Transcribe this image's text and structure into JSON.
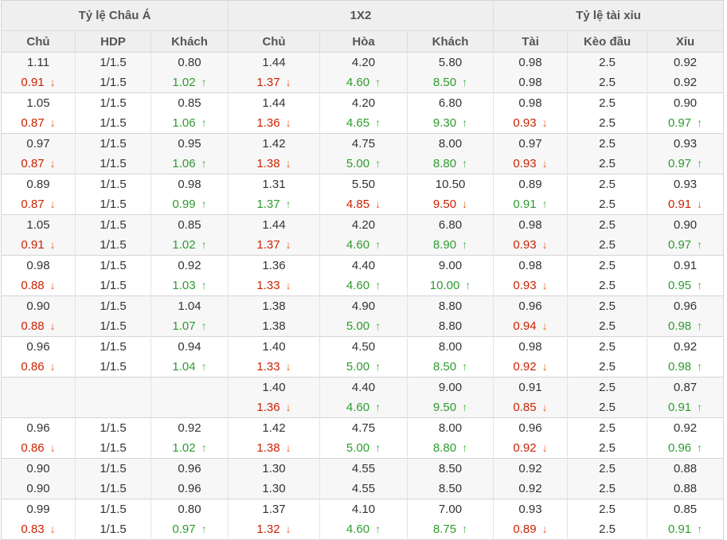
{
  "table": {
    "groups": [
      {
        "label": "Tỷ lệ Châu Á",
        "columns": [
          "Chủ",
          "HDP",
          "Khách"
        ]
      },
      {
        "label": "1X2",
        "columns": [
          "Chủ",
          "Hòa",
          "Khách"
        ]
      },
      {
        "label": "Tỷ lệ tài xỉu",
        "columns": [
          "Tài",
          "Kèo đầu",
          "Xỉu"
        ]
      }
    ],
    "icons": {
      "up": "↑",
      "down": "↓"
    },
    "colors": {
      "header_bg": "#efefef",
      "alt_pair_bg": "#f7f7f7",
      "text": "#333333",
      "value_up": "#2e9b2e",
      "value_down": "#cc2200",
      "arrow_up": "#4db34d",
      "arrow_down": "#ee5a1e"
    },
    "row_pairs": [
      {
        "open": [
          {
            "v": "1.11"
          },
          {
            "v": "1/1.5"
          },
          {
            "v": "0.80"
          },
          {
            "v": "1.44"
          },
          {
            "v": "4.20"
          },
          {
            "v": "5.80"
          },
          {
            "v": "0.98"
          },
          {
            "v": "2.5"
          },
          {
            "v": "0.92"
          }
        ],
        "live": [
          {
            "v": "0.91",
            "t": "down"
          },
          {
            "v": "1/1.5"
          },
          {
            "v": "1.02",
            "t": "up"
          },
          {
            "v": "1.37",
            "t": "down"
          },
          {
            "v": "4.60",
            "t": "up"
          },
          {
            "v": "8.50",
            "t": "up"
          },
          {
            "v": "0.98"
          },
          {
            "v": "2.5"
          },
          {
            "v": "0.92"
          }
        ]
      },
      {
        "open": [
          {
            "v": "1.05"
          },
          {
            "v": "1/1.5"
          },
          {
            "v": "0.85"
          },
          {
            "v": "1.44"
          },
          {
            "v": "4.20"
          },
          {
            "v": "6.80"
          },
          {
            "v": "0.98"
          },
          {
            "v": "2.5"
          },
          {
            "v": "0.90"
          }
        ],
        "live": [
          {
            "v": "0.87",
            "t": "down"
          },
          {
            "v": "1/1.5"
          },
          {
            "v": "1.06",
            "t": "up"
          },
          {
            "v": "1.36",
            "t": "down"
          },
          {
            "v": "4.65",
            "t": "up"
          },
          {
            "v": "9.30",
            "t": "up"
          },
          {
            "v": "0.93",
            "t": "down"
          },
          {
            "v": "2.5"
          },
          {
            "v": "0.97",
            "t": "up"
          }
        ]
      },
      {
        "open": [
          {
            "v": "0.97"
          },
          {
            "v": "1/1.5"
          },
          {
            "v": "0.95"
          },
          {
            "v": "1.42"
          },
          {
            "v": "4.75"
          },
          {
            "v": "8.00"
          },
          {
            "v": "0.97"
          },
          {
            "v": "2.5"
          },
          {
            "v": "0.93"
          }
        ],
        "live": [
          {
            "v": "0.87",
            "t": "down"
          },
          {
            "v": "1/1.5"
          },
          {
            "v": "1.06",
            "t": "up"
          },
          {
            "v": "1.38",
            "t": "down"
          },
          {
            "v": "5.00",
            "t": "up"
          },
          {
            "v": "8.80",
            "t": "up"
          },
          {
            "v": "0.93",
            "t": "down"
          },
          {
            "v": "2.5"
          },
          {
            "v": "0.97",
            "t": "up"
          }
        ]
      },
      {
        "open": [
          {
            "v": "0.89"
          },
          {
            "v": "1/1.5"
          },
          {
            "v": "0.98"
          },
          {
            "v": "1.31"
          },
          {
            "v": "5.50"
          },
          {
            "v": "10.50"
          },
          {
            "v": "0.89"
          },
          {
            "v": "2.5"
          },
          {
            "v": "0.93"
          }
        ],
        "live": [
          {
            "v": "0.87",
            "t": "down"
          },
          {
            "v": "1/1.5"
          },
          {
            "v": "0.99",
            "t": "up"
          },
          {
            "v": "1.37",
            "t": "up"
          },
          {
            "v": "4.85",
            "t": "down"
          },
          {
            "v": "9.50",
            "t": "down"
          },
          {
            "v": "0.91",
            "t": "up"
          },
          {
            "v": "2.5"
          },
          {
            "v": "0.91",
            "t": "down"
          }
        ]
      },
      {
        "open": [
          {
            "v": "1.05"
          },
          {
            "v": "1/1.5"
          },
          {
            "v": "0.85"
          },
          {
            "v": "1.44"
          },
          {
            "v": "4.20"
          },
          {
            "v": "6.80"
          },
          {
            "v": "0.98"
          },
          {
            "v": "2.5"
          },
          {
            "v": "0.90"
          }
        ],
        "live": [
          {
            "v": "0.91",
            "t": "down"
          },
          {
            "v": "1/1.5"
          },
          {
            "v": "1.02",
            "t": "up"
          },
          {
            "v": "1.37",
            "t": "down"
          },
          {
            "v": "4.60",
            "t": "up"
          },
          {
            "v": "8.90",
            "t": "up"
          },
          {
            "v": "0.93",
            "t": "down"
          },
          {
            "v": "2.5"
          },
          {
            "v": "0.97",
            "t": "up"
          }
        ]
      },
      {
        "open": [
          {
            "v": "0.98"
          },
          {
            "v": "1/1.5"
          },
          {
            "v": "0.92"
          },
          {
            "v": "1.36"
          },
          {
            "v": "4.40"
          },
          {
            "v": "9.00"
          },
          {
            "v": "0.98"
          },
          {
            "v": "2.5"
          },
          {
            "v": "0.91"
          }
        ],
        "live": [
          {
            "v": "0.88",
            "t": "down"
          },
          {
            "v": "1/1.5"
          },
          {
            "v": "1.03",
            "t": "up"
          },
          {
            "v": "1.33",
            "t": "down"
          },
          {
            "v": "4.60",
            "t": "up"
          },
          {
            "v": "10.00",
            "t": "up"
          },
          {
            "v": "0.93",
            "t": "down"
          },
          {
            "v": "2.5"
          },
          {
            "v": "0.95",
            "t": "up"
          }
        ]
      },
      {
        "open": [
          {
            "v": "0.90"
          },
          {
            "v": "1/1.5"
          },
          {
            "v": "1.04"
          },
          {
            "v": "1.38"
          },
          {
            "v": "4.90"
          },
          {
            "v": "8.80"
          },
          {
            "v": "0.96"
          },
          {
            "v": "2.5"
          },
          {
            "v": "0.96"
          }
        ],
        "live": [
          {
            "v": "0.88",
            "t": "down"
          },
          {
            "v": "1/1.5"
          },
          {
            "v": "1.07",
            "t": "up"
          },
          {
            "v": "1.38"
          },
          {
            "v": "5.00",
            "t": "up"
          },
          {
            "v": "8.80"
          },
          {
            "v": "0.94",
            "t": "down"
          },
          {
            "v": "2.5"
          },
          {
            "v": "0.98",
            "t": "up"
          }
        ]
      },
      {
        "open": [
          {
            "v": "0.96"
          },
          {
            "v": "1/1.5"
          },
          {
            "v": "0.94"
          },
          {
            "v": "1.40"
          },
          {
            "v": "4.50"
          },
          {
            "v": "8.00"
          },
          {
            "v": "0.98"
          },
          {
            "v": "2.5"
          },
          {
            "v": "0.92"
          }
        ],
        "live": [
          {
            "v": "0.86",
            "t": "down"
          },
          {
            "v": "1/1.5"
          },
          {
            "v": "1.04",
            "t": "up"
          },
          {
            "v": "1.33",
            "t": "down"
          },
          {
            "v": "5.00",
            "t": "up"
          },
          {
            "v": "8.50",
            "t": "up"
          },
          {
            "v": "0.92",
            "t": "down"
          },
          {
            "v": "2.5"
          },
          {
            "v": "0.98",
            "t": "up"
          }
        ]
      },
      {
        "open": [
          {
            "v": ""
          },
          {
            "v": ""
          },
          {
            "v": ""
          },
          {
            "v": "1.40"
          },
          {
            "v": "4.40"
          },
          {
            "v": "9.00"
          },
          {
            "v": "0.91"
          },
          {
            "v": "2.5"
          },
          {
            "v": "0.87"
          }
        ],
        "live": [
          {
            "v": ""
          },
          {
            "v": ""
          },
          {
            "v": ""
          },
          {
            "v": "1.36",
            "t": "down"
          },
          {
            "v": "4.60",
            "t": "up"
          },
          {
            "v": "9.50",
            "t": "up"
          },
          {
            "v": "0.85",
            "t": "down"
          },
          {
            "v": "2.5"
          },
          {
            "v": "0.91",
            "t": "up"
          }
        ]
      },
      {
        "open": [
          {
            "v": "0.96"
          },
          {
            "v": "1/1.5"
          },
          {
            "v": "0.92"
          },
          {
            "v": "1.42"
          },
          {
            "v": "4.75"
          },
          {
            "v": "8.00"
          },
          {
            "v": "0.96"
          },
          {
            "v": "2.5"
          },
          {
            "v": "0.92"
          }
        ],
        "live": [
          {
            "v": "0.86",
            "t": "down"
          },
          {
            "v": "1/1.5"
          },
          {
            "v": "1.02",
            "t": "up"
          },
          {
            "v": "1.38",
            "t": "down"
          },
          {
            "v": "5.00",
            "t": "up"
          },
          {
            "v": "8.80",
            "t": "up"
          },
          {
            "v": "0.92",
            "t": "down"
          },
          {
            "v": "2.5"
          },
          {
            "v": "0.96",
            "t": "up"
          }
        ]
      },
      {
        "open": [
          {
            "v": "0.90"
          },
          {
            "v": "1/1.5"
          },
          {
            "v": "0.96"
          },
          {
            "v": "1.30"
          },
          {
            "v": "4.55"
          },
          {
            "v": "8.50"
          },
          {
            "v": "0.92"
          },
          {
            "v": "2.5"
          },
          {
            "v": "0.88"
          }
        ],
        "live": [
          {
            "v": "0.90"
          },
          {
            "v": "1/1.5"
          },
          {
            "v": "0.96"
          },
          {
            "v": "1.30"
          },
          {
            "v": "4.55"
          },
          {
            "v": "8.50"
          },
          {
            "v": "0.92"
          },
          {
            "v": "2.5"
          },
          {
            "v": "0.88"
          }
        ]
      },
      {
        "open": [
          {
            "v": "0.99"
          },
          {
            "v": "1/1.5"
          },
          {
            "v": "0.80"
          },
          {
            "v": "1.37"
          },
          {
            "v": "4.10"
          },
          {
            "v": "7.00"
          },
          {
            "v": "0.93"
          },
          {
            "v": "2.5"
          },
          {
            "v": "0.85"
          }
        ],
        "live": [
          {
            "v": "0.83",
            "t": "down"
          },
          {
            "v": "1/1.5"
          },
          {
            "v": "0.97",
            "t": "up"
          },
          {
            "v": "1.32",
            "t": "down"
          },
          {
            "v": "4.60",
            "t": "up"
          },
          {
            "v": "8.75",
            "t": "up"
          },
          {
            "v": "0.89",
            "t": "down"
          },
          {
            "v": "2.5"
          },
          {
            "v": "0.91",
            "t": "up"
          }
        ]
      }
    ]
  }
}
